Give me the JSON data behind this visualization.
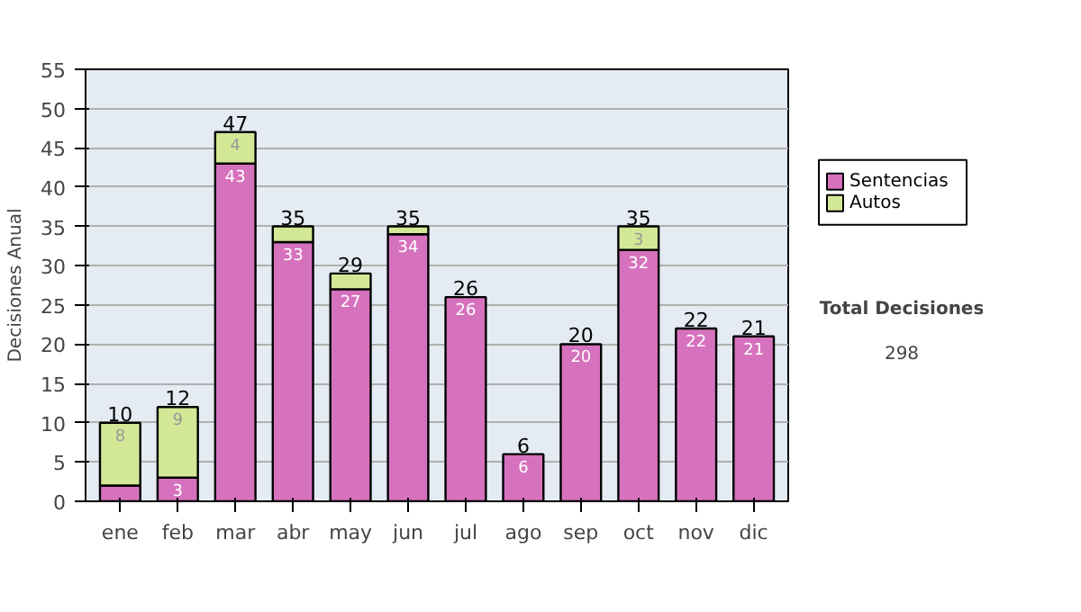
{
  "chart_data": {
    "type": "bar",
    "stacked": true,
    "ylabel": "Decisiones Anual",
    "categories": [
      "ene",
      "feb",
      "mar",
      "abr",
      "may",
      "jun",
      "jul",
      "ago",
      "sep",
      "oct",
      "nov",
      "dic"
    ],
    "series": [
      {
        "name": "Sentencias",
        "color": "#d672bd",
        "values": [
          2,
          3,
          43,
          33,
          27,
          34,
          26,
          6,
          20,
          32,
          22,
          21
        ],
        "value_labels": [
          null,
          "3",
          "43",
          "33",
          "27",
          "34",
          "26",
          "6",
          "20",
          "32",
          "22",
          "21"
        ]
      },
      {
        "name": "Autos",
        "color": "#d3e896",
        "values": [
          8,
          9,
          4,
          2,
          2,
          1,
          null,
          null,
          null,
          3,
          null,
          null
        ],
        "value_labels": [
          "8",
          "9",
          "4",
          null,
          null,
          null,
          null,
          null,
          null,
          "3",
          null,
          null
        ]
      }
    ],
    "totals": [
      "10",
      "12",
      "47",
      "35",
      "29",
      "35",
      "26",
      "6",
      "20",
      "35",
      "22",
      "21"
    ],
    "ylim": [
      0,
      55
    ],
    "yticks": [
      0,
      5,
      10,
      15,
      20,
      25,
      30,
      35,
      40,
      45,
      50,
      55
    ],
    "grid": "y",
    "legend": "right",
    "annotations": [
      "Total Decisiones",
      "298"
    ]
  }
}
